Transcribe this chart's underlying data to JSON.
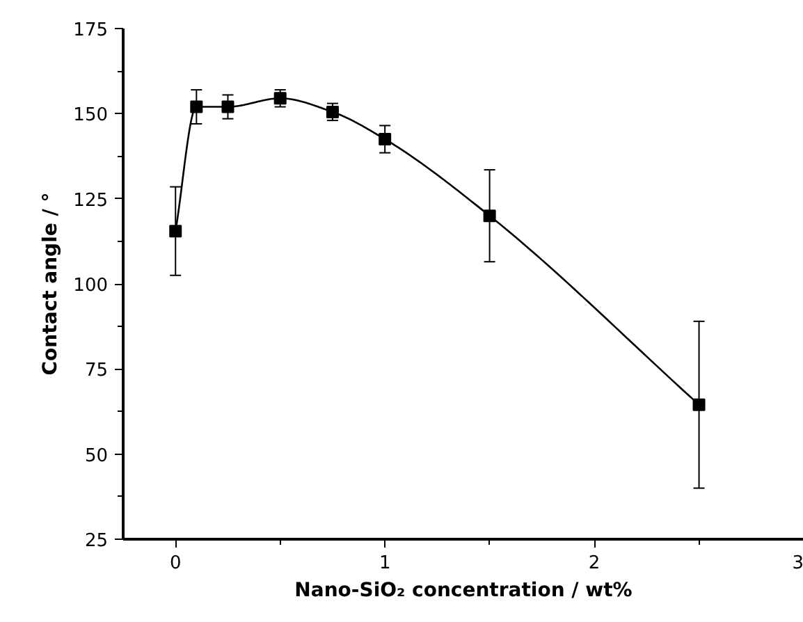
{
  "chart_data": {
    "type": "line",
    "xlabel": "Nano-SiO₂ concentration / wt%",
    "ylabel": "Contact angle / °",
    "x": [
      0,
      0.1,
      0.25,
      0.5,
      0.75,
      1,
      1.5,
      2.5
    ],
    "series": [
      {
        "color": "#000000",
        "values": [
          115.5,
          152,
          152,
          154.5,
          150.5,
          142.5,
          120,
          64.5
        ],
        "errors": [
          13,
          5,
          3.5,
          2.5,
          2.5,
          4,
          13.5,
          24.5
        ]
      }
    ],
    "marker": "square",
    "line_style": "solid",
    "grid": false,
    "xlim": [
      -0.25,
      3
    ],
    "ylim": [
      25,
      175
    ],
    "xticks": [
      0,
      {
        "value": 0.5,
        "label": null
      },
      1,
      {
        "value": 1.5,
        "label": null
      },
      2,
      {
        "value": 2.5,
        "label": null
      },
      3
    ],
    "yticks": [
      25,
      {
        "value": 37.5,
        "label": null
      },
      50,
      {
        "value": 62.5,
        "label": null
      },
      75,
      {
        "value": 87.5,
        "label": null
      },
      100,
      {
        "value": 112.5,
        "label": null
      },
      125,
      {
        "value": 137.5,
        "label": null
      },
      150,
      {
        "value": 162.5,
        "label": null
      },
      175
    ]
  }
}
